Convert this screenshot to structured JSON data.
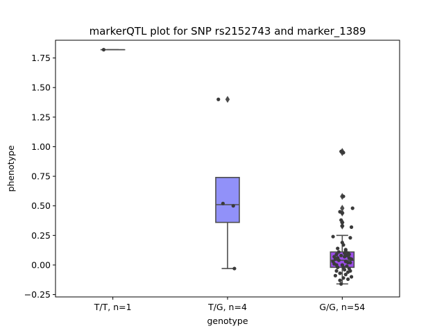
{
  "chart_data": {
    "type": "box",
    "title": "markerQTL plot for SNP rs2152743 and marker_1389",
    "xlabel": "genotype",
    "ylabel": "phenotype",
    "ylim": [
      -0.27,
      1.9
    ],
    "yticks": [
      -0.25,
      0.0,
      0.25,
      0.5,
      0.75,
      1.0,
      1.25,
      1.5,
      1.75
    ],
    "ytick_labels": [
      "−0.25",
      "0.00",
      "0.25",
      "0.50",
      "0.75",
      "1.00",
      "1.25",
      "1.50",
      "1.75"
    ],
    "categories": [
      "T/T, n=1",
      "T/G, n=4",
      "G/G, n=54"
    ],
    "colors": {
      "box_tg": "#9191f9",
      "box_gg": "#9b4de8",
      "line": "#4c4c4c",
      "point": "#3a3a3a"
    },
    "boxes": [
      {
        "q1": 1.82,
        "median": 1.82,
        "q3": 1.82,
        "whisker_low": 1.82,
        "whisker_high": 1.82,
        "fliers": []
      },
      {
        "q1": 0.36,
        "median": 0.51,
        "q3": 0.74,
        "whisker_low": -0.03,
        "whisker_high": 0.74,
        "fliers": [
          1.4
        ]
      },
      {
        "q1": -0.02,
        "median": 0.04,
        "q3": 0.11,
        "whisker_low": -0.16,
        "whisker_high": 0.25,
        "fliers": [
          0.96,
          0.95,
          0.58,
          0.48,
          0.44,
          0.36,
          0.33
        ]
      }
    ],
    "points": [
      {
        "x": -0.08,
        "y": 1.82
      },
      {
        "x": 0.92,
        "y": 1.4
      },
      {
        "x": 0.96,
        "y": 0.52
      },
      {
        "x": 1.05,
        "y": 0.5
      },
      {
        "x": 1.06,
        "y": -0.03
      },
      {
        "x": 1.99,
        "y": 0.96
      },
      {
        "x": 2.01,
        "y": 0.95
      },
      {
        "x": 2.01,
        "y": 0.58
      },
      {
        "x": 2.09,
        "y": 0.48
      },
      {
        "x": 1.98,
        "y": 0.45
      },
      {
        "x": 2.0,
        "y": 0.44
      },
      {
        "x": 1.99,
        "y": 0.38
      },
      {
        "x": 2.0,
        "y": 0.36
      },
      {
        "x": 2.08,
        "y": 0.32
      },
      {
        "x": 2.0,
        "y": 0.33
      },
      {
        "x": 1.92,
        "y": 0.24
      },
      {
        "x": 2.07,
        "y": 0.23
      },
      {
        "x": 2.0,
        "y": 0.19
      },
      {
        "x": 2.01,
        "y": 0.17
      },
      {
        "x": 1.96,
        "y": 0.14
      },
      {
        "x": 2.03,
        "y": 0.13
      },
      {
        "x": 2.05,
        "y": 0.1
      },
      {
        "x": 1.95,
        "y": 0.09
      },
      {
        "x": 1.99,
        "y": 0.08
      },
      {
        "x": 2.02,
        "y": 0.07
      },
      {
        "x": 2.06,
        "y": 0.06
      },
      {
        "x": 1.94,
        "y": 0.05
      },
      {
        "x": 1.97,
        "y": 0.04
      },
      {
        "x": 2.03,
        "y": 0.03
      },
      {
        "x": 2.07,
        "y": 0.02
      },
      {
        "x": 1.93,
        "y": 0.01
      },
      {
        "x": 2.0,
        "y": 0.0
      },
      {
        "x": 2.04,
        "y": -0.01
      },
      {
        "x": 1.96,
        "y": -0.02
      },
      {
        "x": 2.06,
        "y": -0.03
      },
      {
        "x": 2.02,
        "y": -0.04
      },
      {
        "x": 1.95,
        "y": -0.05
      },
      {
        "x": 2.05,
        "y": -0.06
      },
      {
        "x": 1.98,
        "y": -0.07
      },
      {
        "x": 2.03,
        "y": -0.08
      },
      {
        "x": 1.94,
        "y": -0.09
      },
      {
        "x": 2.08,
        "y": -0.1
      },
      {
        "x": 2.01,
        "y": -0.11
      },
      {
        "x": 2.05,
        "y": -0.12
      },
      {
        "x": 1.99,
        "y": -0.16
      },
      {
        "x": 2.02,
        "y": 0.1
      },
      {
        "x": 2.08,
        "y": 0.05
      },
      {
        "x": 1.97,
        "y": 0.11
      },
      {
        "x": 2.04,
        "y": 0.08
      },
      {
        "x": 1.92,
        "y": 0.03
      },
      {
        "x": 2.07,
        "y": -0.05
      },
      {
        "x": 1.96,
        "y": 0.06
      },
      {
        "x": 2.01,
        "y": -0.02
      },
      {
        "x": 2.06,
        "y": 0.09
      },
      {
        "x": 1.95,
        "y": 0.0
      },
      {
        "x": 2.03,
        "y": 0.12
      },
      {
        "x": 1.98,
        "y": -0.13
      },
      {
        "x": 2.05,
        "y": 0.02
      },
      {
        "x": 1.93,
        "y": 0.07
      }
    ]
  }
}
